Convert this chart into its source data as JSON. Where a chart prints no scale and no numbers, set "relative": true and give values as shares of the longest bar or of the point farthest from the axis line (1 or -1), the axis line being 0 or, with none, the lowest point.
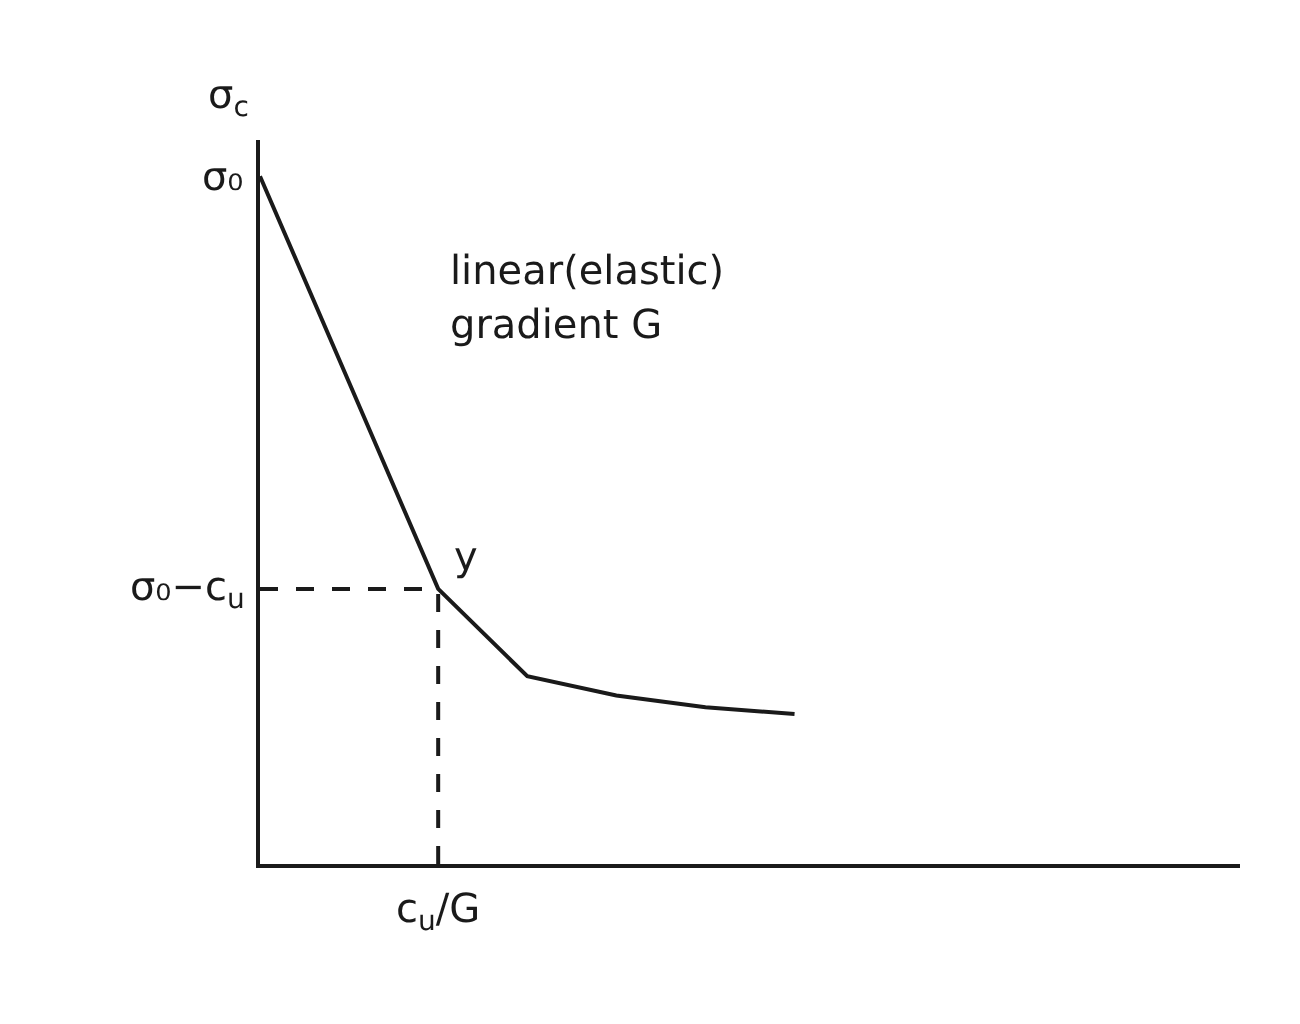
{
  "chart_data": {
    "type": "line",
    "ylabel": "σ$_{c}$",
    "relative": true,
    "categories": [
      null,
      null,
      null,
      null,
      null,
      null,
      null,
      null,
      null,
      null,
      null,
      null
    ],
    "series": [
      {
        "color": "#1a1a1a",
        "values": [
          1,
          0.7,
          0.4,
          0.273,
          0.245,
          0.228,
          0.218,
          null,
          null,
          null,
          null,
          null
        ]
      }
    ],
    "ref_lines": [
      {
        "axis": "y",
        "value": 0.4,
        "label": "σ₀−c$_{u}$",
        "line_style": "dashed",
        "color": "#1a1a1a"
      }
    ],
    "annotations": [
      "σ₀",
      "y",
      "linear(elastic)",
      "gradient G",
      "c$_{u}$/G"
    ],
    "grid": false,
    "marker": "none",
    "line_style": "solid"
  }
}
